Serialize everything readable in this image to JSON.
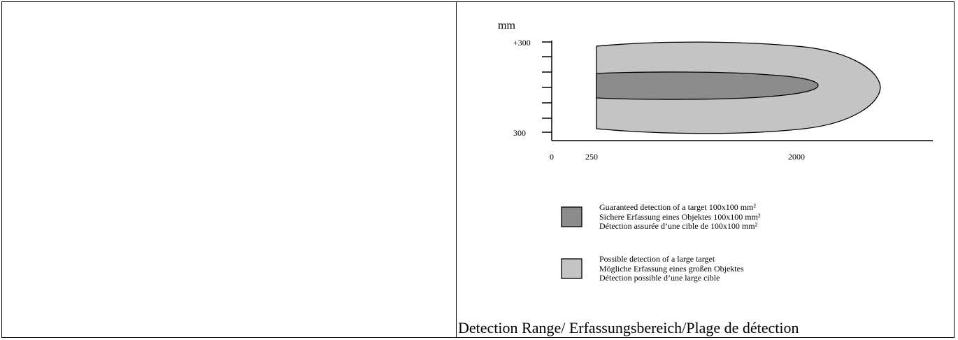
{
  "chart": {
    "unit_label": "mm",
    "y_ticks": [
      "+300",
      "300"
    ],
    "x_ticks": [
      "0",
      "250",
      "2000"
    ]
  },
  "legend": [
    {
      "swatch_color": "#8c8c8c",
      "lines": [
        "Guaranteed detection of a target 100x100 mm²",
        "Sichere Erfassung eines Objektes 100x100 mm²",
        "Détection assurée d’une cible de 100x100 mm²"
      ]
    },
    {
      "swatch_color": "#c4c4c4",
      "lines": [
        "Possible detection of a large target",
        "Mögliche Erfassung eines großen Objektes",
        "Détection possible d’une large cible"
      ]
    }
  ],
  "caption": "Detection Range/ Erfassungsbereich/Plage de détection"
}
